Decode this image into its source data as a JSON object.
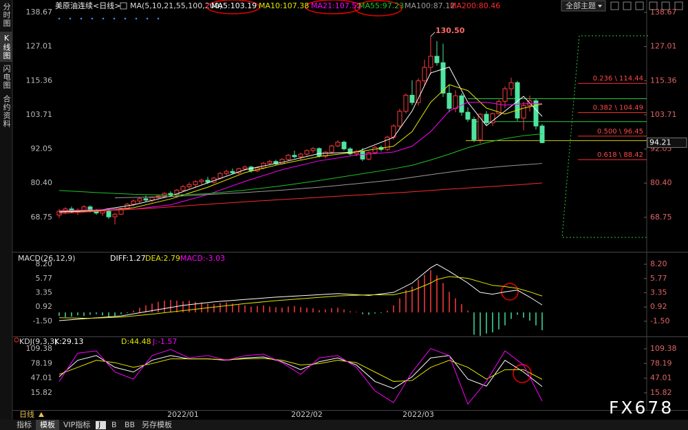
{
  "chart_data": [
    {
      "type": "candlestick",
      "title": "美原油连续<日线>",
      "indicator": "MA(5,10,21,55,100,200)",
      "categories": [
        null,
        null,
        null,
        null,
        null,
        null,
        null,
        null,
        null,
        null,
        null,
        null,
        null,
        null,
        null,
        null,
        null,
        null,
        null,
        null,
        "2022/01",
        null,
        null,
        null,
        null,
        null,
        null,
        null,
        null,
        null,
        null,
        null,
        null,
        null,
        null,
        null,
        null,
        null,
        null,
        null,
        "2022/02",
        null,
        null,
        null,
        null,
        null,
        null,
        null,
        null,
        null,
        null,
        null,
        null,
        null,
        null,
        null,
        null,
        null,
        "2022/03",
        null,
        null,
        null,
        null,
        null,
        null,
        null,
        null,
        null,
        null,
        null,
        null,
        null,
        null,
        null,
        null,
        null,
        null,
        null,
        null
      ],
      "open": [
        69.5,
        70.8,
        71.6,
        70.6,
        71.2,
        72.3,
        70.9,
        70.2,
        70.9,
        68.9,
        69.8,
        71.7,
        73.2,
        74.3,
        75.1,
        74.6,
        75.5,
        76.0,
        76.9,
        76.3,
        78.0,
        79.2,
        79.9,
        80.9,
        81.4,
        80.7,
        82.1,
        83.7,
        84.4,
        83.9,
        85.3,
        85.9,
        84.6,
        85.6,
        87.2,
        87.8,
        87.0,
        88.5,
        89.9,
        89.4,
        90.3,
        91.5,
        92.2,
        89.6,
        91.0,
        93.1,
        94.4,
        92.1,
        90.4,
        91.2,
        88.6,
        90.8,
        92.6,
        91.9,
        96.1,
        99.9,
        104.9,
        110.4,
        107.9,
        115.3,
        119.9,
        123.7,
        121.5,
        111.1,
        105.9,
        110.2,
        104.6,
        102.2,
        95.2,
        103.9,
        101.0,
        104.1,
        108.3,
        112.6,
        114.7,
        102.6,
        106.9,
        108.5,
        99.9
      ],
      "high": [
        71.5,
        72.2,
        72.4,
        71.8,
        72.9,
        72.8,
        71.5,
        71.4,
        71.6,
        70.3,
        72.0,
        73.6,
        74.8,
        75.6,
        76.2,
        75.9,
        76.4,
        77.3,
        77.6,
        78.4,
        79.8,
        80.6,
        81.4,
        82.0,
        82.6,
        82.5,
        84.2,
        85.0,
        85.4,
        85.7,
        86.4,
        86.3,
        86.1,
        87.6,
        88.3,
        88.4,
        88.9,
        90.4,
        91.5,
        90.8,
        91.9,
        92.7,
        92.6,
        91.3,
        93.5,
        95.0,
        94.9,
        92.6,
        91.8,
        92.4,
        91.2,
        93.1,
        93.2,
        96.6,
        100.5,
        105.8,
        111.0,
        115.5,
        116.2,
        122.5,
        130.5,
        128.9,
        128.0,
        113.9,
        112.1,
        111.0,
        106.2,
        103.1,
        104.3,
        105.0,
        104.5,
        108.9,
        113.4,
        116.4,
        115.3,
        108.2,
        110.3,
        109.2,
        100.6
      ],
      "low": [
        68.5,
        69.8,
        70.2,
        69.5,
        70.6,
        70.4,
        69.6,
        69.2,
        68.2,
        66.3,
        69.5,
        71.3,
        72.5,
        73.4,
        74.0,
        73.8,
        74.9,
        75.4,
        75.8,
        76.0,
        77.4,
        78.5,
        79.0,
        80.0,
        80.1,
        80.2,
        81.6,
        83.0,
        83.5,
        83.4,
        84.6,
        84.0,
        84.2,
        85.1,
        86.4,
        86.6,
        86.7,
        88.0,
        88.8,
        88.4,
        89.6,
        90.7,
        89.1,
        88.9,
        90.4,
        92.6,
        91.5,
        89.9,
        89.6,
        87.9,
        88.2,
        90.3,
        91.2,
        91.4,
        95.2,
        99.1,
        104.2,
        107.0,
        106.9,
        113.5,
        117.5,
        120.5,
        109.8,
        104.6,
        104.6,
        103.4,
        101.3,
        94.4,
        94.0,
        100.2,
        99.9,
        103.8,
        106.0,
        110.2,
        101.6,
        98.4,
        104.8,
        98.7,
        94.0
      ],
      "close": [
        70.8,
        71.6,
        70.6,
        71.2,
        72.3,
        70.9,
        70.2,
        70.9,
        68.9,
        69.8,
        71.7,
        73.2,
        74.3,
        75.1,
        74.6,
        75.5,
        76.0,
        76.9,
        76.3,
        78.0,
        79.2,
        79.9,
        80.9,
        81.4,
        80.7,
        82.1,
        83.7,
        84.4,
        83.9,
        85.3,
        85.9,
        84.6,
        85.6,
        87.2,
        87.8,
        87.0,
        88.5,
        89.9,
        89.4,
        90.3,
        91.5,
        92.2,
        89.6,
        91.0,
        93.1,
        94.4,
        92.1,
        90.4,
        91.2,
        88.6,
        90.8,
        92.6,
        91.9,
        96.1,
        99.9,
        104.9,
        110.4,
        107.9,
        115.3,
        119.9,
        123.7,
        121.5,
        111.1,
        105.9,
        110.2,
        104.6,
        102.2,
        95.2,
        103.9,
        101.0,
        104.1,
        108.3,
        112.6,
        114.7,
        102.6,
        106.9,
        108.5,
        99.9,
        94.21
      ],
      "up_color": "#ff3b3b",
      "down_color": "#4fe3a0",
      "series": [
        {
          "name": "MA5:103.19",
          "color": "#ffffff",
          "x": [
            0,
            6,
            12,
            18,
            24,
            30,
            36,
            42,
            48,
            54,
            57,
            60,
            63,
            66,
            69,
            72,
            75,
            78
          ],
          "values": [
            70.5,
            71,
            73,
            76,
            80.5,
            85,
            87.5,
            90.5,
            91,
            96,
            105,
            118,
            120,
            108,
            100,
            105,
            110,
            103.19
          ]
        },
        {
          "name": "MA10:107.38",
          "color": "#e6e600",
          "x": [
            0,
            6,
            12,
            18,
            24,
            30,
            36,
            42,
            48,
            54,
            57,
            60,
            63,
            66,
            69,
            72,
            75,
            78
          ],
          "values": [
            70.8,
            71,
            72,
            75,
            79,
            84,
            87,
            89.5,
            91,
            93,
            98,
            108,
            114,
            112,
            106,
            104,
            106,
            107.38
          ]
        },
        {
          "name": "MA21:107.52",
          "color": "#ff00ff",
          "x": [
            0,
            6,
            12,
            18,
            24,
            30,
            36,
            42,
            48,
            54,
            57,
            60,
            63,
            66,
            69,
            72,
            75,
            78
          ],
          "values": [
            71,
            71.3,
            71.5,
            73,
            76.5,
            81,
            85,
            88,
            90,
            91,
            93,
            98,
            105,
            108,
            108,
            107,
            107.5,
            107.52
          ]
        },
        {
          "name": "MA55:97.23",
          "color": "#22c322",
          "x": [
            0,
            6,
            12,
            18,
            24,
            30,
            36,
            42,
            48,
            54,
            57,
            60,
            63,
            66,
            69,
            72,
            75,
            78
          ],
          "values": [
            77.9,
            77.2,
            76.6,
            76.3,
            76.8,
            78.0,
            79.5,
            81.3,
            83.3,
            85.3,
            86.5,
            88.3,
            90.3,
            92.5,
            94.2,
            95.6,
            96.6,
            97.23
          ]
        },
        {
          "name": "MA100:87.12",
          "color": "#9a9a9a",
          "x": [
            9,
            18,
            24,
            30,
            36,
            42,
            48,
            54,
            60,
            66,
            72,
            78
          ],
          "values": [
            75.4,
            75.8,
            76.5,
            77.2,
            78.0,
            79.0,
            80.2,
            81.5,
            83.3,
            85.0,
            86.2,
            87.12
          ]
        },
        {
          "name": "MA200:80.46",
          "color": "#ff2a2a",
          "x": [
            0,
            8,
            16,
            24,
            32,
            40,
            48,
            56,
            62,
            68,
            74,
            78
          ],
          "values": [
            70.0,
            71.0,
            72.0,
            73.2,
            74.3,
            75.3,
            76.3,
            77.3,
            78.2,
            79.0,
            79.8,
            80.46
          ]
        }
      ],
      "ylim": [
        57.2,
        138.67
      ],
      "yticks": [
        138.67,
        127.01,
        115.36,
        103.71,
        92.05,
        {
          "value": 80.4,
          "label": "80.40"
        },
        68.75
      ],
      "high_label": {
        "value": 130.5,
        "label": "130.50"
      },
      "current_price": 94.21,
      "drawings": [
        {
          "value": 109.2,
          "color": "#2ecc40"
        },
        {
          "value": 101.4,
          "color": "#2ecc40"
        },
        {
          "value": 94.9,
          "color": "#d4d400"
        }
      ],
      "fib_levels": [
        {
          "value": 114.44,
          "label": "0.236 \\ 114.44"
        },
        {
          "value": 104.49,
          "label": "0.382 \\ 104.49"
        },
        {
          "value": 96.45,
          "label": "0.500 \\ 96.45"
        },
        {
          "value": 88.42,
          "label": "0.618 \\ 88.42"
        }
      ]
    },
    {
      "type": "macd",
      "title": "MACD(26,12,9)",
      "values": [
        -0.6,
        -0.8,
        -0.7,
        -0.5,
        -0.6,
        -0.4,
        -0.3,
        -0.5,
        -0.7,
        -0.6,
        -0.3,
        -0.1,
        0.3,
        0.8,
        1.2,
        1.5,
        1.8,
        2.0,
        2.1,
        2.0,
        1.9,
        2.0,
        1.8,
        1.7,
        1.5,
        1.4,
        1.6,
        1.7,
        1.5,
        1.3,
        1.2,
        1.0,
        1.1,
        1.2,
        1.0,
        0.9,
        0.8,
        1.0,
        1.1,
        0.9,
        0.8,
        0.7,
        0.4,
        0.5,
        0.7,
        0.8,
        0.5,
        0.2,
        0.1,
        -0.3,
        -0.4,
        -0.2,
        -0.1,
        0.3,
        1.2,
        2.4,
        3.8,
        4.4,
        5.6,
        6.4,
        7.2,
        6.3,
        5.0,
        3.5,
        2.4,
        1.4,
        0.3,
        -3.8,
        -4.0,
        -3.6,
        -3.4,
        -2.9,
        -2.2,
        -1.1,
        -0.4,
        -0.9,
        -1.4,
        -2.2,
        -3.03
      ],
      "up_color": "#ff3b3b",
      "down_color": "#3fe0a0",
      "series": [
        {
          "name": "DIFF:1.27",
          "color": "#ffffff",
          "x": [
            0,
            5,
            10,
            15,
            20,
            25,
            30,
            35,
            40,
            45,
            50,
            54,
            57,
            60,
            61,
            63,
            66,
            68,
            70,
            72,
            74,
            76,
            78
          ],
          "values": [
            -1.4,
            -1.0,
            -0.6,
            0.3,
            1.2,
            1.8,
            2.2,
            2.6,
            2.9,
            3.2,
            2.9,
            3.4,
            5.0,
            7.6,
            8.2,
            7.0,
            5.0,
            3.4,
            3.1,
            3.5,
            3.8,
            2.6,
            1.27
          ]
        },
        {
          "name": "DEA:2.79",
          "color": "#e6e600",
          "x": [
            0,
            5,
            10,
            15,
            20,
            25,
            30,
            35,
            40,
            45,
            50,
            54,
            57,
            60,
            61,
            63,
            66,
            68,
            70,
            72,
            74,
            76,
            78
          ],
          "values": [
            -0.9,
            -1.0,
            -0.8,
            -0.3,
            0.3,
            0.9,
            1.5,
            2.0,
            2.4,
            2.8,
            3.0,
            3.0,
            3.7,
            5.0,
            5.6,
            6.1,
            5.8,
            5.2,
            4.6,
            4.4,
            4.1,
            3.5,
            2.79
          ]
        },
        {
          "name": "MACD:-3.03",
          "color": "#ff00ff"
        }
      ],
      "ylim": [
        -3.97,
        10.08
      ],
      "yticks": [
        {
          "value": 8.2,
          "label": "8.20"
        },
        5.77,
        3.35,
        0.92,
        {
          "value": -1.5,
          "label": "-1.50"
        }
      ]
    },
    {
      "type": "line",
      "title": "KDJ(9,3,3)",
      "series": [
        {
          "name": "K:29.13",
          "color": "#ffffff",
          "x": [
            0,
            3,
            6,
            9,
            12,
            15,
            18,
            21,
            24,
            27,
            30,
            33,
            36,
            39,
            42,
            45,
            48,
            51,
            54,
            57,
            60,
            63,
            66,
            69,
            72,
            75,
            78
          ],
          "values": [
            50,
            85,
            95,
            70,
            60,
            85,
            95,
            88,
            88,
            85,
            90,
            92,
            82,
            65,
            82,
            90,
            75,
            40,
            25,
            50,
            90,
            95,
            45,
            30,
            85,
            60,
            29.13
          ]
        },
        {
          "name": "D:44.48",
          "color": "#e6e600",
          "x": [
            0,
            3,
            6,
            9,
            12,
            15,
            18,
            21,
            24,
            27,
            30,
            33,
            36,
            39,
            42,
            45,
            48,
            51,
            54,
            57,
            60,
            63,
            66,
            69,
            72,
            75,
            78
          ],
          "values": [
            55,
            70,
            85,
            80,
            70,
            78,
            88,
            88,
            88,
            86,
            88,
            89,
            85,
            75,
            78,
            85,
            80,
            60,
            40,
            42,
            70,
            85,
            70,
            45,
            65,
            65,
            44.48
          ]
        },
        {
          "name": "J:-1.57",
          "color": "#ff00ff",
          "x": [
            0,
            3,
            6,
            9,
            12,
            15,
            18,
            21,
            24,
            27,
            30,
            33,
            36,
            39,
            42,
            45,
            48,
            51,
            54,
            57,
            60,
            63,
            66,
            69,
            72,
            75,
            78
          ],
          "values": [
            40,
            100,
            105,
            60,
            45,
            95,
            108,
            90,
            95,
            85,
            95,
            98,
            80,
            55,
            90,
            95,
            70,
            20,
            -5,
            60,
            110,
            95,
            -8,
            40,
            105,
            75,
            -1.57
          ]
        }
      ],
      "ylim": [
        -19.3,
        134.2
      ],
      "yticks": [
        109.38,
        78.19,
        47.01,
        15.82
      ]
    }
  ],
  "ui": {
    "left_tabs": [
      "分时图",
      "K线图",
      "闪电图",
      "合约资料"
    ],
    "theme_button": "全部主题",
    "period": "日线",
    "toolbar": [
      "指标",
      "模板",
      "VIP指标",
      "J",
      "B",
      "BB",
      "另存模板"
    ],
    "watermark": "FX678"
  }
}
